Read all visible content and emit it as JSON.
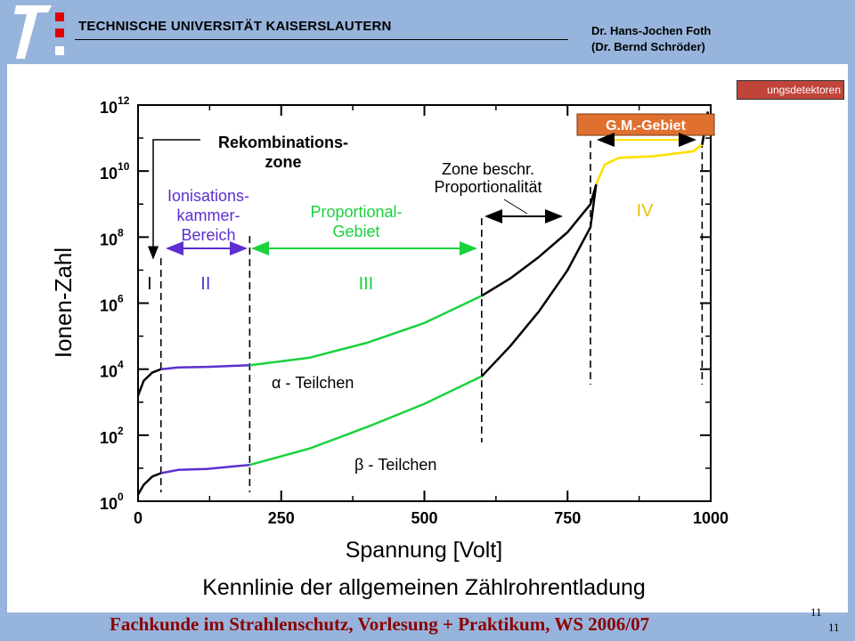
{
  "header": {
    "university": "TECHNISCHE UNIVERSITÄT KAISERSLAUTERN",
    "author_line1": "Dr. Hans-Jochen Foth",
    "author_line2": "(Dr. Bernd Schröder)"
  },
  "tab_label": "ungsdetektoren",
  "footer": {
    "text": "Fachkunde im Strahlenschutz, Vorlesung + Praktikum, WS 2006/07",
    "page_number_top": "11",
    "page_number_bottom": "11"
  },
  "colors": {
    "header_bg": "#97b4dc",
    "footer_text": "#8b0000",
    "ionisation": "#5b2fd0",
    "proportional": "#19d23c",
    "gm": "#ffe000",
    "gm_label_bg": "#e07030"
  },
  "chart_data": {
    "type": "line",
    "title": "Kennlinie der allgemeinen Zählrohrentladung",
    "xlabel": "Spannung [Volt]",
    "ylabel": "Ionen-Zahl",
    "xlim": [
      0,
      1000
    ],
    "ylim_log10": [
      0,
      12
    ],
    "y_scale": "log",
    "x_ticks": [
      "0",
      "250",
      "500",
      "750",
      "1000"
    ],
    "y_ticks": [
      {
        "base": "10",
        "exp": "0"
      },
      {
        "base": "10",
        "exp": "2"
      },
      {
        "base": "10",
        "exp": "4"
      },
      {
        "base": "10",
        "exp": "6"
      },
      {
        "base": "10",
        "exp": "8"
      },
      {
        "base": "10",
        "exp": "10"
      },
      {
        "base": "10",
        "exp": "12"
      }
    ],
    "region_boundaries_x": [
      40,
      195,
      600,
      790,
      985
    ],
    "regions": [
      {
        "numeral": "I",
        "x": 20
      },
      {
        "numeral": "II",
        "x": 118
      },
      {
        "numeral": "III",
        "x": 398
      },
      {
        "numeral": "IV",
        "x": 885
      }
    ],
    "annotations": {
      "rekombination_line1": "Rekombinations-",
      "rekombination_line2": "zone",
      "ionisation_line1": "Ionisations-",
      "ionisation_line2": "kammer-",
      "ionisation_line3": "Bereich",
      "proportional_line1": "Proportional-",
      "proportional_line2": "Gebiet",
      "zone_line1": "Zone beschr.",
      "zone_line2": "Proportionalität",
      "gm_label": "G.M.-Gebiet"
    },
    "series": [
      {
        "name": "α - Teilchen",
        "points": [
          [
            0,
            3.2
          ],
          [
            10,
            3.65
          ],
          [
            25,
            3.9
          ],
          [
            40,
            4.0
          ],
          [
            70,
            4.05
          ],
          [
            120,
            4.07
          ],
          [
            195,
            4.12
          ],
          [
            300,
            4.35
          ],
          [
            400,
            4.8
          ],
          [
            500,
            5.4
          ],
          [
            600,
            6.22
          ],
          [
            650,
            6.75
          ],
          [
            700,
            7.4
          ],
          [
            750,
            8.15
          ],
          [
            790,
            9.0
          ],
          [
            800,
            9.6
          ],
          [
            815,
            10.2
          ],
          [
            840,
            10.4
          ],
          [
            900,
            10.45
          ],
          [
            970,
            10.6
          ],
          [
            985,
            10.8
          ],
          [
            995,
            11.8
          ]
        ]
      },
      {
        "name": "β - Teilchen",
        "points": [
          [
            0,
            0.2
          ],
          [
            10,
            0.5
          ],
          [
            25,
            0.75
          ],
          [
            40,
            0.85
          ],
          [
            70,
            0.95
          ],
          [
            120,
            0.98
          ],
          [
            195,
            1.1
          ],
          [
            300,
            1.6
          ],
          [
            400,
            2.25
          ],
          [
            500,
            2.95
          ],
          [
            600,
            3.78
          ],
          [
            650,
            4.7
          ],
          [
            700,
            5.75
          ],
          [
            750,
            7.0
          ],
          [
            790,
            8.3
          ],
          [
            800,
            9.6
          ],
          [
            815,
            10.2
          ],
          [
            840,
            10.4
          ],
          [
            900,
            10.45
          ],
          [
            970,
            10.6
          ],
          [
            985,
            10.8
          ],
          [
            995,
            11.8
          ]
        ]
      }
    ]
  }
}
